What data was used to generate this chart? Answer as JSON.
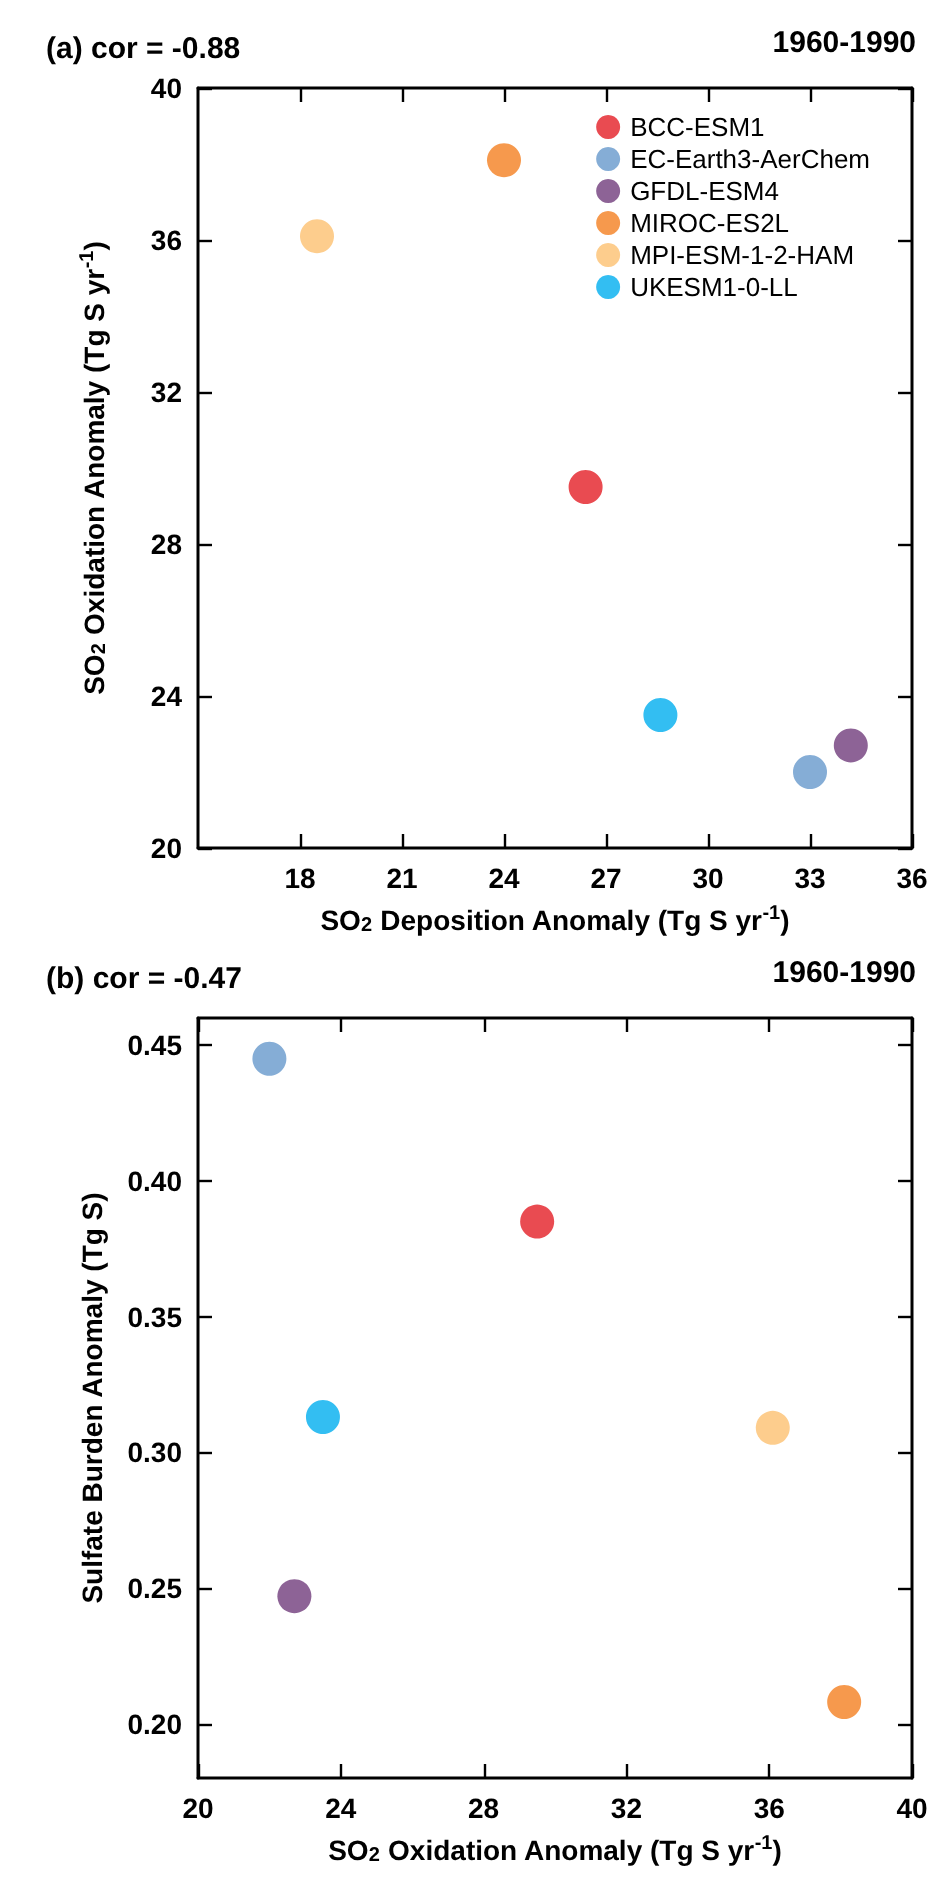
{
  "chart_data": [
    {
      "type": "scatter",
      "title": "(a) cor = -0.88",
      "annotations": [
        "1960-1990"
      ],
      "xlabel": "SO$_{2}$ Deposition Anomaly (Tg S yr$^{-1}$)",
      "ylabel": "SO$_{2}$ Oxidation Anomaly (Tg S yr$^{-1}$)",
      "xlim": [
        15,
        36
      ],
      "xticks": [
        18,
        21,
        24,
        27,
        30,
        33,
        36
      ],
      "ylim": [
        20,
        40
      ],
      "yticks": [
        20,
        24,
        28,
        32,
        36,
        40
      ],
      "grid": false,
      "legend": "top right",
      "marker": "circle",
      "series": [
        {
          "name": "BCC-ESM1",
          "color": "#e31e26",
          "x": [
            26.4
          ],
          "values": [
            29.5
          ]
        },
        {
          "name": "EC-Earth3-AerChem",
          "color": "#6699cc",
          "x": [
            33.0
          ],
          "values": [
            22.0
          ]
        },
        {
          "name": "GFDL-ESM4",
          "color": "#703c7c",
          "x": [
            34.2
          ],
          "values": [
            22.7
          ]
        },
        {
          "name": "MIROC-ES2L",
          "color": "#f47f20",
          "x": [
            24.0
          ],
          "values": [
            38.1
          ]
        },
        {
          "name": "MPI-ESM-1-2-HAM",
          "color": "#fdc171",
          "x": [
            18.5
          ],
          "values": [
            36.1
          ]
        },
        {
          "name": "UKESM1-0-LL",
          "color": "#00aeef",
          "x": [
            28.6
          ],
          "values": [
            23.5
          ]
        }
      ]
    },
    {
      "type": "scatter",
      "title": "(b) cor = -0.47",
      "annotations": [
        "1960-1990"
      ],
      "xlabel": "SO$_{2}$ Oxidation Anomaly (Tg S yr$^{-1}$)",
      "ylabel": "Sulfate Burden Anomaly (Tg S)",
      "xlim": [
        20,
        40
      ],
      "xticks": [
        20,
        24,
        28,
        32,
        36,
        40
      ],
      "ylim": [
        0.18,
        0.46
      ],
      "yticks": [
        {
          "value": 0.2,
          "label": "0.20"
        },
        {
          "value": 0.25,
          "label": "0.25"
        },
        {
          "value": 0.3,
          "label": "0.30"
        },
        {
          "value": 0.35,
          "label": "0.35"
        },
        {
          "value": 0.4,
          "label": "0.40"
        },
        {
          "value": 0.45,
          "label": "0.45"
        }
      ],
      "grid": false,
      "legend": false,
      "marker": "circle",
      "series": [
        {
          "color": "#e31e26",
          "x": [
            29.5
          ],
          "values": [
            0.385
          ]
        },
        {
          "color": "#6699cc",
          "x": [
            22.0
          ],
          "values": [
            0.445
          ]
        },
        {
          "color": "#703c7c",
          "x": [
            22.7
          ],
          "values": [
            0.247
          ]
        },
        {
          "color": "#f47f20",
          "x": [
            38.1
          ],
          "values": [
            0.208
          ]
        },
        {
          "color": "#fdc171",
          "x": [
            36.1
          ],
          "values": [
            0.309
          ]
        },
        {
          "color": "#00aeef",
          "x": [
            23.5
          ],
          "values": [
            0.313
          ]
        }
      ]
    }
  ]
}
